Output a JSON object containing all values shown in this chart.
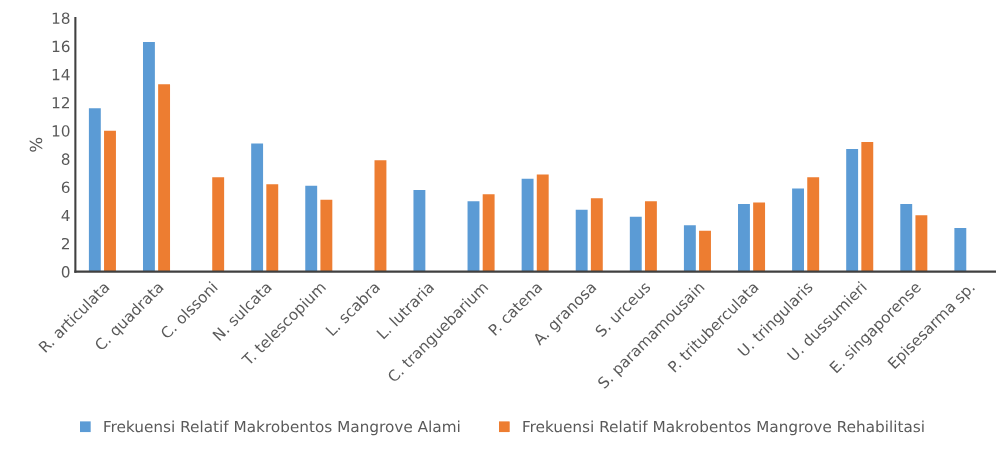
{
  "chart_data": {
    "type": "bar",
    "ylabel": "%",
    "categories": [
      "R. articulata",
      "C. quadrata",
      "C. olssoni",
      "N. sulcata",
      "T. telescopium",
      "L. scabra",
      "L. lutraria",
      "C. tranguebarium",
      "P. catena",
      "A. granosa",
      "S. urceus",
      "S. paramamousain",
      "P. trituberculata",
      "U. tringularis",
      "U. dussumieri",
      "E. singaporense",
      "Episesarma sp."
    ],
    "series": [
      {
        "name": "Frekuensi Relatif Makrobentos Mangrove Alami",
        "color": "#5b9bd5",
        "values": [
          11.6,
          16.3,
          null,
          9.1,
          6.1,
          null,
          5.8,
          5.0,
          6.6,
          4.4,
          3.9,
          3.3,
          4.8,
          5.9,
          8.7,
          4.8,
          3.1
        ]
      },
      {
        "name": "Frekuensi Relatif Makrobentos Mangrove Rehabilitasi",
        "color": "#ed7d31",
        "values": [
          10.0,
          13.3,
          6.7,
          6.2,
          5.1,
          7.9,
          null,
          5.5,
          6.9,
          5.2,
          5.0,
          2.9,
          4.9,
          6.7,
          9.2,
          4.0,
          null
        ]
      }
    ],
    "ylim": [
      0,
      18
    ],
    "yticks": [
      0,
      2,
      4,
      6,
      8,
      10,
      12,
      14,
      16,
      18
    ],
    "grid": false,
    "legend": "bottom"
  }
}
